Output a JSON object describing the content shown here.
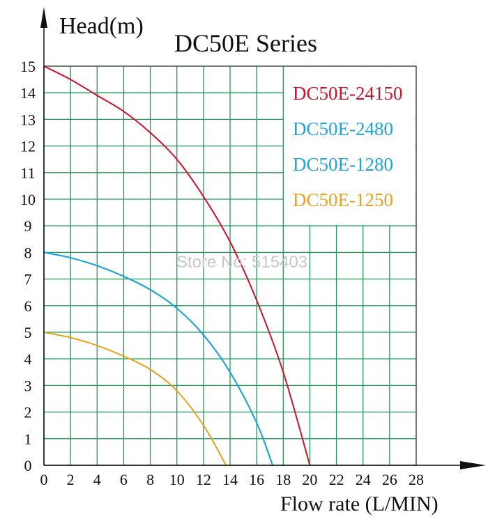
{
  "chart_data": {
    "type": "line",
    "title": "DC50E Series",
    "xlabel": "Flow rate (L/MIN)",
    "ylabel": "Head(m)",
    "xlim": [
      0,
      28
    ],
    "ylim": [
      0,
      15
    ],
    "x_ticks": [
      0,
      2,
      4,
      6,
      8,
      10,
      12,
      14,
      16,
      18,
      20,
      22,
      24,
      26,
      28
    ],
    "y_ticks": [
      0,
      1,
      2,
      3,
      4,
      5,
      6,
      7,
      8,
      9,
      10,
      11,
      12,
      13,
      14,
      15
    ],
    "grid": true,
    "legend_position": "top-right",
    "watermark": "Store No: 515403",
    "series": [
      {
        "name": "DC50E-24150",
        "color": "#d0112b",
        "x": [
          0,
          2,
          4,
          6,
          8,
          10,
          12,
          14,
          16,
          18,
          20
        ],
        "y": [
          15,
          14.5,
          13.9,
          13.3,
          12.5,
          11.5,
          10.1,
          8.4,
          6.2,
          3.5,
          0
        ]
      },
      {
        "name": "DC50E-2480",
        "color": "#1ea6d8",
        "x": [
          0,
          2,
          4,
          6,
          8,
          10,
          12,
          14,
          16,
          17.2
        ],
        "y": [
          8,
          7.8,
          7.5,
          7.1,
          6.6,
          5.9,
          4.9,
          3.5,
          1.6,
          0
        ]
      },
      {
        "name": "DC50E-1280",
        "color": "#1ea6d8",
        "x": [
          0,
          2,
          4,
          6,
          8,
          10,
          12,
          14,
          16,
          17.2
        ],
        "y": [
          8,
          7.8,
          7.5,
          7.1,
          6.6,
          5.9,
          4.9,
          3.5,
          1.6,
          0
        ]
      },
      {
        "name": "DC50E-1250",
        "color": "#e8a21a",
        "x": [
          0,
          2,
          4,
          6,
          8,
          10,
          12,
          13.7
        ],
        "y": [
          5,
          4.8,
          4.5,
          4.1,
          3.6,
          2.8,
          1.5,
          0
        ]
      }
    ]
  }
}
